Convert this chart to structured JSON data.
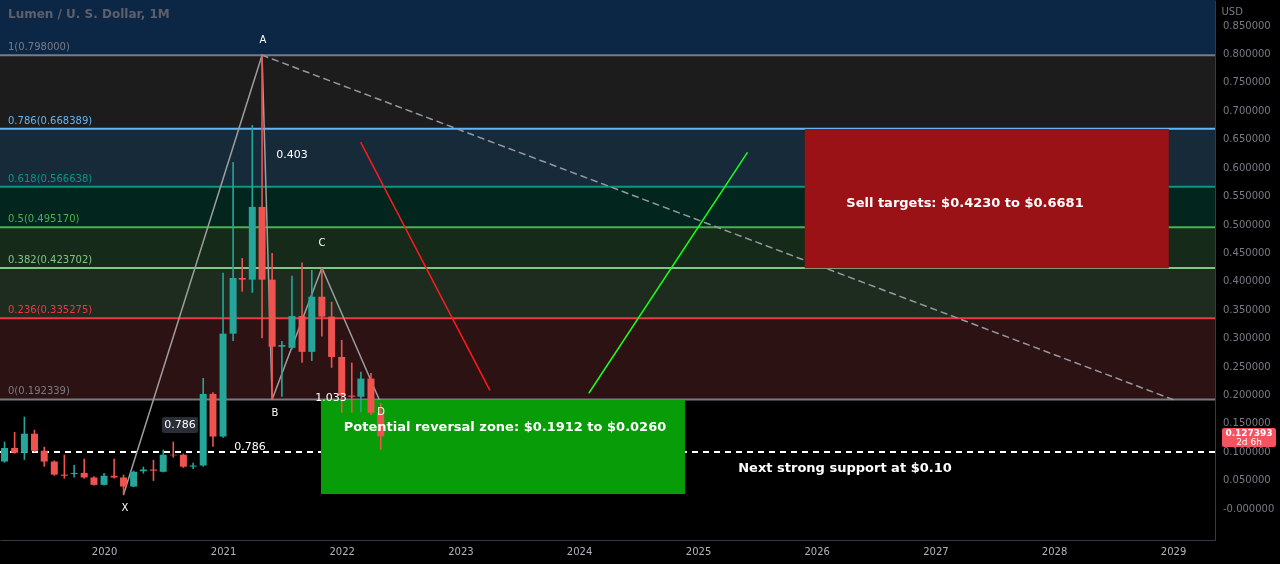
{
  "chart_data": {
    "type": "candlestick",
    "title": "Lumen / U. S. Dollar, 1M",
    "ylabel": "USD",
    "x": [
      "2019-03",
      "2019-04",
      "2019-05",
      "2019-06",
      "2019-07",
      "2019-08",
      "2019-09",
      "2019-10",
      "2019-11",
      "2019-12",
      "2020-01",
      "2020-02",
      "2020-03",
      "2020-04",
      "2020-05",
      "2020-06",
      "2020-07",
      "2020-08",
      "2020-09",
      "2020-10",
      "2020-11",
      "2020-12",
      "2021-01",
      "2021-02",
      "2021-03",
      "2021-04",
      "2021-05",
      "2021-06",
      "2021-07",
      "2021-08",
      "2021-09",
      "2021-10",
      "2021-11",
      "2021-12",
      "2022-01",
      "2022-02",
      "2022-03",
      "2022-04",
      "2022-05"
    ],
    "ohlc": [
      [
        0.083,
        0.118,
        0.081,
        0.107
      ],
      [
        0.107,
        0.135,
        0.097,
        0.0985
      ],
      [
        0.0985,
        0.162,
        0.086,
        0.132
      ],
      [
        0.132,
        0.139,
        0.1,
        0.102
      ],
      [
        0.102,
        0.109,
        0.074,
        0.083
      ],
      [
        0.083,
        0.085,
        0.058,
        0.06
      ],
      [
        0.06,
        0.095,
        0.053,
        0.058
      ],
      [
        0.061,
        0.077,
        0.055,
        0.063
      ],
      [
        0.063,
        0.088,
        0.053,
        0.055
      ],
      [
        0.055,
        0.057,
        0.041,
        0.042
      ],
      [
        0.042,
        0.063,
        0.041,
        0.058
      ],
      [
        0.058,
        0.088,
        0.053,
        0.055
      ],
      [
        0.055,
        0.06,
        0.025,
        0.039
      ],
      [
        0.039,
        0.067,
        0.038,
        0.065
      ],
      [
        0.066,
        0.074,
        0.062,
        0.069
      ],
      [
        0.069,
        0.086,
        0.049,
        0.067
      ],
      [
        0.065,
        0.104,
        0.064,
        0.095
      ],
      [
        0.095,
        0.118,
        0.09,
        0.094
      ],
      [
        0.095,
        0.097,
        0.072,
        0.074
      ],
      [
        0.074,
        0.081,
        0.07,
        0.076
      ],
      [
        0.076,
        0.23,
        0.074,
        0.202
      ],
      [
        0.202,
        0.205,
        0.109,
        0.127
      ],
      [
        0.127,
        0.415,
        0.125,
        0.308
      ],
      [
        0.308,
        0.61,
        0.295,
        0.406
      ],
      [
        0.406,
        0.441,
        0.382,
        0.403
      ],
      [
        0.403,
        0.675,
        0.38,
        0.531
      ],
      [
        0.531,
        0.798,
        0.3,
        0.403
      ],
      [
        0.403,
        0.45,
        0.192,
        0.285
      ],
      [
        0.285,
        0.295,
        0.197,
        0.288
      ],
      [
        0.283,
        0.41,
        0.28,
        0.339
      ],
      [
        0.339,
        0.433,
        0.257,
        0.276
      ],
      [
        0.276,
        0.42,
        0.26,
        0.373
      ],
      [
        0.373,
        0.4237,
        0.303,
        0.338
      ],
      [
        0.338,
        0.364,
        0.248,
        0.267
      ],
      [
        0.267,
        0.297,
        0.169,
        0.199
      ],
      [
        0.199,
        0.257,
        0.169,
        0.197
      ],
      [
        0.197,
        0.241,
        0.17,
        0.229
      ],
      [
        0.229,
        0.239,
        0.165,
        0.169
      ],
      [
        0.169,
        0.186,
        0.104,
        0.127393
      ]
    ],
    "colors": [
      "#26a69a",
      "#ef5350",
      "#26a69a",
      "#ef5350",
      "#ef5350",
      "#ef5350",
      "#ef5350",
      "#26a69a",
      "#ef5350",
      "#ef5350",
      "#26a69a",
      "#ef5350",
      "#ef5350",
      "#26a69a",
      "#26a69a",
      "#ef5350",
      "#26a69a",
      "#ef5350",
      "#ef5350",
      "#26a69a",
      "#26a69a",
      "#ef5350",
      "#26a69a",
      "#26a69a",
      "#ef5350",
      "#26a69a",
      "#ef5350",
      "#ef5350",
      "#26a69a",
      "#26a69a",
      "#ef5350",
      "#26a69a",
      "#ef5350",
      "#ef5350",
      "#ef5350",
      "#ef5350",
      "#26a69a",
      "#ef5350",
      "#ef5350"
    ],
    "xlim": [
      "2019-02-15",
      "2029-05-10"
    ],
    "xticks": [
      "2020",
      "2021",
      "2022",
      "2023",
      "2024",
      "2025",
      "2026",
      "2027",
      "2028",
      "2029"
    ],
    "ylim": [
      -0.055,
      0.895
    ],
    "yticks": [
      {
        "value": 0,
        "label": "-0.000000"
      },
      {
        "value": 0.05,
        "label": "0.050000"
      },
      {
        "value": 0.1,
        "label": "0.100000"
      },
      {
        "value": 0.15,
        "label": "0.150000"
      },
      {
        "value": 0.2,
        "label": "0.200000"
      },
      {
        "value": 0.25,
        "label": "0.250000"
      },
      {
        "value": 0.3,
        "label": "0.300000"
      },
      {
        "value": 0.35,
        "label": "0.350000"
      },
      {
        "value": 0.4,
        "label": "0.400000"
      },
      {
        "value": 0.45,
        "label": "0.450000"
      },
      {
        "value": 0.5,
        "label": "0.500000"
      },
      {
        "value": 0.55,
        "label": "0.550000"
      },
      {
        "value": 0.6,
        "label": "0.600000"
      },
      {
        "value": 0.65,
        "label": "0.650000"
      },
      {
        "value": 0.7,
        "label": "0.700000"
      },
      {
        "value": 0.75,
        "label": "0.750000"
      },
      {
        "value": 0.8,
        "label": "0.800000"
      },
      {
        "value": 0.85,
        "label": "0.850000"
      }
    ],
    "grid": false,
    "series": [
      {
        "type": "line",
        "color": "#9598a1",
        "line_style": "dashed",
        "x": [
          "2021-05",
          "2029-01"
        ],
        "values": [
          0.798,
          0.192
        ]
      },
      {
        "type": "line",
        "color": "#9e9e9e",
        "line_style": "solid",
        "x": [
          "2020-03",
          "2021-05",
          "2021-06",
          "2021-11",
          "2022-05"
        ],
        "values": [
          0.025,
          0.798,
          0.192,
          0.424,
          0.186
        ]
      },
      {
        "type": "bar",
        "color": "#9a1116",
        "x": [
          "2027-06-08"
        ],
        "values": [
          0.2451
        ],
        "base": [
          0.423
        ]
      },
      {
        "type": "bar",
        "color": "#089c08",
        "x": [
          "2023-05-12"
        ],
        "values": [
          0.1652
        ],
        "base": [
          0.026
        ]
      },
      {
        "type": "line",
        "color": "#ff1a1a",
        "line_style": "solid",
        "x": [
          "2022-03",
          "2023-04"
        ],
        "values": [
          0.644,
          0.209
        ]
      },
      {
        "type": "line",
        "color": "#1aff1a",
        "line_style": "solid",
        "x": [
          "2024-02",
          "2025-06"
        ],
        "values": [
          0.204,
          0.626
        ]
      }
    ],
    "bands": [
      {
        "axis": "y",
        "from": 0.798,
        "to": 0.895,
        "color": "#0c2745"
      },
      {
        "axis": "y",
        "from": 0.668389,
        "to": 0.798,
        "color": "#1c1c1c"
      },
      {
        "axis": "y",
        "from": 0.566638,
        "to": 0.668389,
        "color": "#172a3a"
      },
      {
        "axis": "y",
        "from": 0.49517,
        "to": 0.566638,
        "color": "#02261e"
      },
      {
        "axis": "y",
        "from": 0.423702,
        "to": 0.49517,
        "color": "#152a19"
      },
      {
        "axis": "y",
        "from": 0.335275,
        "to": 0.423702,
        "color": "#1e2c20"
      },
      {
        "axis": "y",
        "from": 0.192339,
        "to": 0.335275,
        "color": "#2d1213"
      }
    ],
    "ref_lines": [
      {
        "axis": "y",
        "value": 0.798,
        "label": "1(0.798000)",
        "color": "#787b86"
      },
      {
        "axis": "y",
        "value": 0.668389,
        "label": "0.786(0.668389)",
        "color": "#64b5f6"
      },
      {
        "axis": "y",
        "value": 0.566638,
        "label": "0.618(0.566638)",
        "color": "#089981"
      },
      {
        "axis": "y",
        "value": 0.49517,
        "label": "0.5(0.495170)",
        "color": "#4caf50"
      },
      {
        "axis": "y",
        "value": 0.423702,
        "label": "0.382(0.423702)",
        "color": "#81c784"
      },
      {
        "axis": "y",
        "value": 0.335275,
        "label": "0.236(0.335275)",
        "color": "#f23645"
      },
      {
        "axis": "y",
        "value": 0.192339,
        "label": "0(0.192339)",
        "color": "#787b86"
      },
      {
        "axis": "y",
        "value": 0.1,
        "label": "Next strong support at $0.10",
        "color": "#ffffff",
        "line_style": "dashed"
      }
    ],
    "annotations": [
      "A",
      "X",
      "B",
      "C",
      "D",
      "0.403",
      "0.786",
      "0.786",
      "1.033",
      "Sell targets: $0.4230 to $0.6681",
      "Potential reversal zone: $0.1912 to $0.0260",
      "0.127393",
      "2d 6h"
    ]
  }
}
